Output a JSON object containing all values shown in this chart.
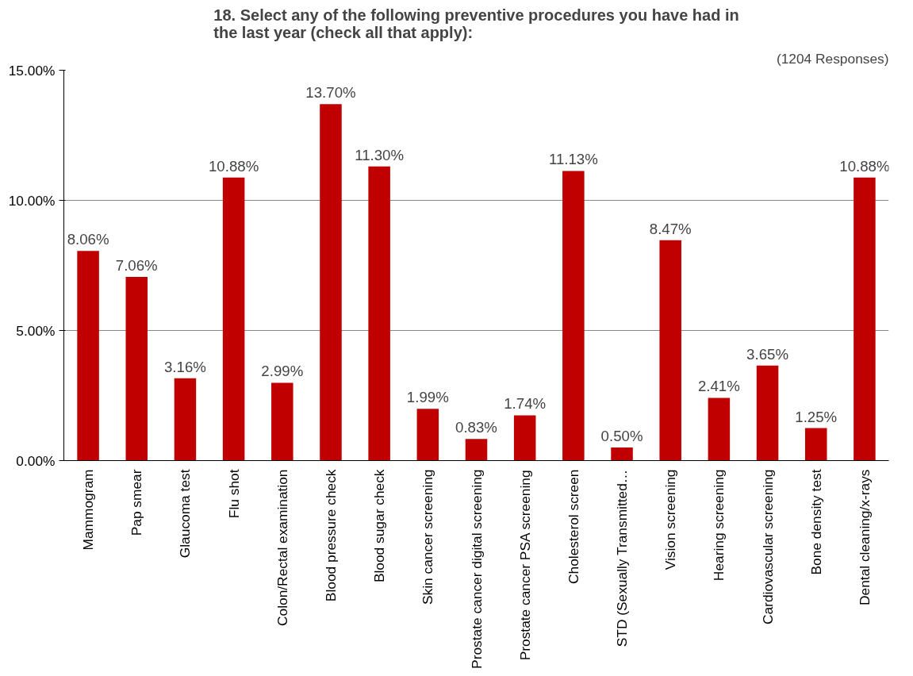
{
  "chart_data": {
    "type": "bar",
    "title": "18. Select any of the following preventive procedures you have had in\nthe last year (check all that apply):",
    "annotations": [
      "(1204 Responses)"
    ],
    "categories": [
      "Mammogram",
      "Pap smear",
      "Glaucoma test",
      "Flu shot",
      "Colon/Rectal examination",
      "Blood pressure check",
      "Blood sugar check",
      "Skin cancer screening",
      "Prostate cancer digital screening",
      "Prostate cancer PSA screening",
      "Cholesterol screen",
      "STD (Sexually Transmitted…",
      "Vision screening",
      "Hearing screening",
      "Cardiovascular screening",
      "Bone density test",
      "Dental cleaning/x-rays"
    ],
    "values": [
      8.06,
      7.06,
      3.16,
      10.88,
      2.99,
      13.7,
      11.3,
      1.99,
      0.83,
      1.74,
      11.13,
      0.5,
      8.47,
      2.41,
      3.65,
      1.25,
      10.88
    ],
    "value_labels": [
      "8.06%",
      "7.06%",
      "3.16%",
      "10.88%",
      "2.99%",
      "13.70%",
      "11.30%",
      "1.99%",
      "0.83%",
      "1.74%",
      "11.13%",
      "0.50%",
      "8.47%",
      "2.41%",
      "3.65%",
      "1.25%",
      "10.88%"
    ],
    "color": "#c00000",
    "ylim": [
      0,
      15
    ],
    "yticks": [
      {
        "value": 0,
        "label": "0.00%"
      },
      {
        "value": 5,
        "label": "5.00%"
      },
      {
        "value": 10,
        "label": "10.00%"
      },
      {
        "value": 15,
        "label": "15.00%"
      }
    ],
    "grid": "y"
  }
}
